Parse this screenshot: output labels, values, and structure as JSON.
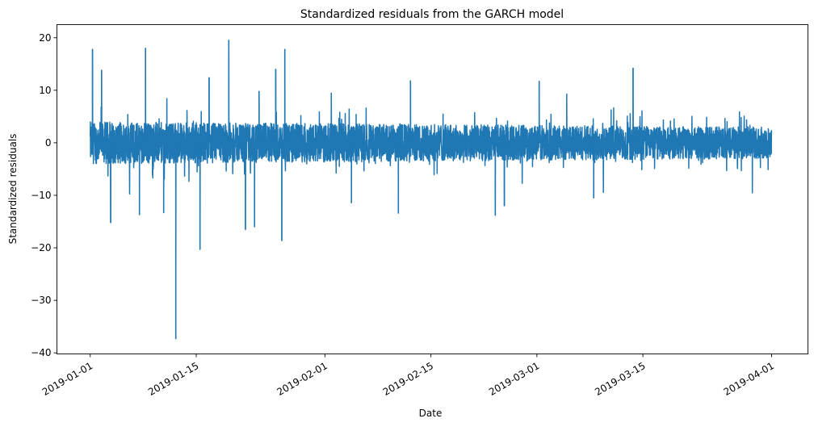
{
  "chart_data": {
    "type": "line",
    "title": "Standardized residuals from the GARCH model",
    "xlabel": "Date",
    "ylabel": "Standardized residuals",
    "x_start": "2019-01-01",
    "xlim_days_from_start": [
      -4.4,
      94.8
    ],
    "ylim": [
      -40.2,
      22.5
    ],
    "grid": false,
    "legend": "none",
    "color": "#1f77b4",
    "xticks": [
      {
        "label": "2019-01-01",
        "day": 0
      },
      {
        "label": "2019-01-15",
        "day": 14
      },
      {
        "label": "2019-02-01",
        "day": 31
      },
      {
        "label": "2019-02-15",
        "day": 45
      },
      {
        "label": "2019-03-01",
        "day": 59
      },
      {
        "label": "2019-03-15",
        "day": 73
      },
      {
        "label": "2019-04-01",
        "day": 90
      }
    ],
    "yticks": [
      {
        "label": "20",
        "value": 20
      },
      {
        "label": "10",
        "value": 10
      },
      {
        "label": "0",
        "value": 0
      },
      {
        "label": "−10",
        "value": -10
      },
      {
        "label": "−20",
        "value": -20
      },
      {
        "label": "−30",
        "value": -30
      },
      {
        "label": "−40",
        "value": -40
      }
    ],
    "series_range_days": [
      0,
      90
    ],
    "typical_band": [
      -4,
      4
    ],
    "notable_points": [
      {
        "date": "2019-01-01",
        "value": 17.8
      },
      {
        "date": "2019-01-02",
        "value": 13.8
      },
      {
        "date": "2019-01-03",
        "value": -15.2
      },
      {
        "date": "2019-01-08",
        "value": 18.0
      },
      {
        "date": "2019-01-07",
        "value": -13.7
      },
      {
        "date": "2019-01-10",
        "value": -13.3
      },
      {
        "date": "2019-01-12",
        "value": -37.3
      },
      {
        "date": "2019-01-15",
        "value": -20.3
      },
      {
        "date": "2019-01-16",
        "value": 12.4
      },
      {
        "date": "2019-01-19",
        "value": 19.5
      },
      {
        "date": "2019-01-21",
        "value": -16.5
      },
      {
        "date": "2019-01-22",
        "value": -16.0
      },
      {
        "date": "2019-01-23",
        "value": 9.8
      },
      {
        "date": "2019-01-25",
        "value": 14.0
      },
      {
        "date": "2019-01-26",
        "value": 17.8
      },
      {
        "date": "2019-01-26",
        "value": -18.6
      },
      {
        "date": "2019-02-04",
        "value": -11.4
      },
      {
        "date": "2019-02-10",
        "value": -13.4
      },
      {
        "date": "2019-02-12",
        "value": 11.8
      },
      {
        "date": "2019-02-23",
        "value": -13.8
      },
      {
        "date": "2019-02-24",
        "value": -12.0
      },
      {
        "date": "2019-03-01",
        "value": 11.7
      },
      {
        "date": "2019-03-08",
        "value": -10.5
      },
      {
        "date": "2019-03-13",
        "value": 14.2
      }
    ]
  }
}
